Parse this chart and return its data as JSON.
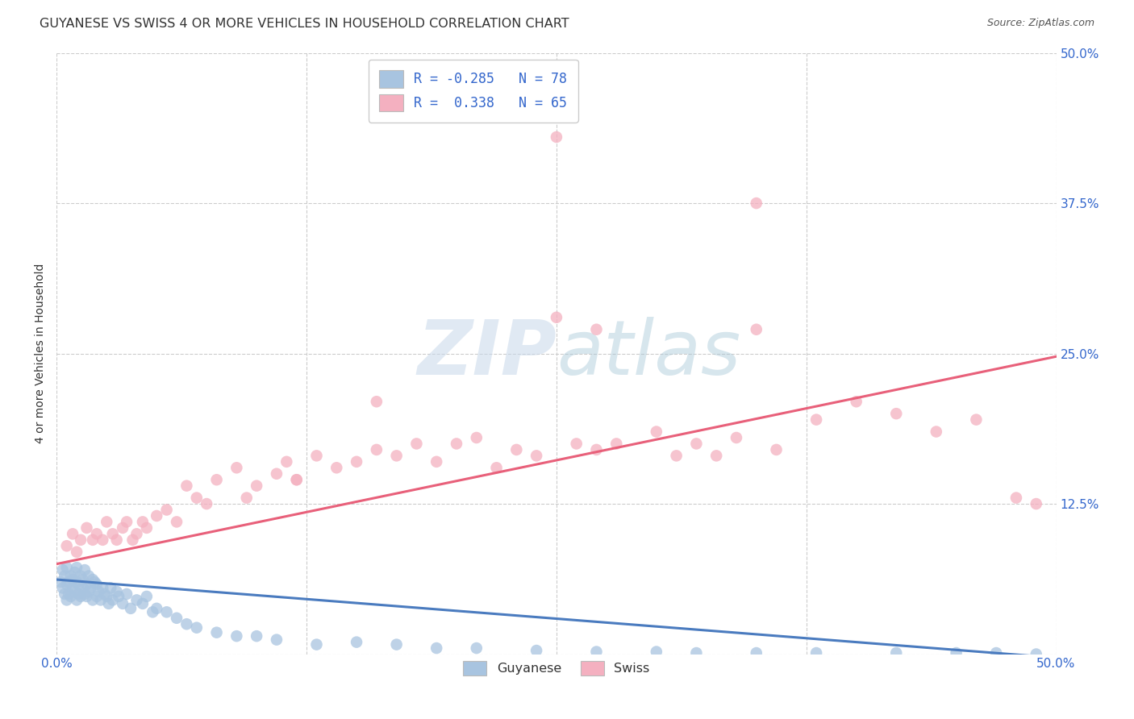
{
  "title": "GUYANESE VS SWISS 4 OR MORE VEHICLES IN HOUSEHOLD CORRELATION CHART",
  "source": "Source: ZipAtlas.com",
  "ylabel": "4 or more Vehicles in Household",
  "xlim": [
    0.0,
    0.5
  ],
  "ylim": [
    0.0,
    0.5
  ],
  "xtick_vals": [
    0.0,
    0.125,
    0.25,
    0.375,
    0.5
  ],
  "xticklabels": [
    "0.0%",
    "",
    "",
    "",
    "50.0%"
  ],
  "ytick_vals": [
    0.0,
    0.125,
    0.25,
    0.375,
    0.5
  ],
  "yticklabels_right": [
    "",
    "12.5%",
    "25.0%",
    "37.5%",
    "50.0%"
  ],
  "guyanese_R": -0.285,
  "guyanese_N": 78,
  "swiss_R": 0.338,
  "swiss_N": 65,
  "guyanese_color": "#a8c4e0",
  "swiss_color": "#f4b0c0",
  "guyanese_line_color": "#4a7bbf",
  "swiss_line_color": "#e8607a",
  "legend_color": "#3366cc",
  "title_fontsize": 11.5,
  "label_fontsize": 10,
  "tick_fontsize": 11,
  "guy_line_intercept": 0.062,
  "guy_line_slope": -0.13,
  "swiss_line_intercept": 0.075,
  "swiss_line_slope": 0.345,
  "guyanese_x": [
    0.002,
    0.003,
    0.003,
    0.004,
    0.004,
    0.005,
    0.005,
    0.005,
    0.006,
    0.006,
    0.007,
    0.007,
    0.008,
    0.008,
    0.009,
    0.009,
    0.01,
    0.01,
    0.01,
    0.011,
    0.011,
    0.012,
    0.012,
    0.013,
    0.013,
    0.014,
    0.014,
    0.015,
    0.015,
    0.016,
    0.016,
    0.017,
    0.018,
    0.018,
    0.019,
    0.02,
    0.02,
    0.021,
    0.022,
    0.023,
    0.024,
    0.025,
    0.026,
    0.027,
    0.028,
    0.03,
    0.031,
    0.033,
    0.035,
    0.037,
    0.04,
    0.043,
    0.045,
    0.048,
    0.05,
    0.055,
    0.06,
    0.065,
    0.07,
    0.08,
    0.09,
    0.1,
    0.11,
    0.13,
    0.15,
    0.17,
    0.19,
    0.21,
    0.24,
    0.27,
    0.3,
    0.32,
    0.35,
    0.38,
    0.42,
    0.45,
    0.47,
    0.49
  ],
  "guyanese_y": [
    0.06,
    0.055,
    0.07,
    0.05,
    0.065,
    0.045,
    0.058,
    0.072,
    0.05,
    0.06,
    0.065,
    0.048,
    0.055,
    0.062,
    0.052,
    0.068,
    0.06,
    0.045,
    0.072,
    0.058,
    0.05,
    0.065,
    0.048,
    0.055,
    0.062,
    0.05,
    0.07,
    0.058,
    0.048,
    0.065,
    0.052,
    0.055,
    0.062,
    0.045,
    0.06,
    0.058,
    0.048,
    0.052,
    0.045,
    0.055,
    0.05,
    0.048,
    0.042,
    0.055,
    0.045,
    0.052,
    0.048,
    0.042,
    0.05,
    0.038,
    0.045,
    0.042,
    0.048,
    0.035,
    0.038,
    0.035,
    0.03,
    0.025,
    0.022,
    0.018,
    0.015,
    0.015,
    0.012,
    0.008,
    0.01,
    0.008,
    0.005,
    0.005,
    0.003,
    0.002,
    0.002,
    0.001,
    0.001,
    0.001,
    0.001,
    0.001,
    0.001,
    0.0
  ],
  "swiss_x": [
    0.005,
    0.008,
    0.01,
    0.012,
    0.015,
    0.018,
    0.02,
    0.023,
    0.025,
    0.028,
    0.03,
    0.033,
    0.035,
    0.038,
    0.04,
    0.043,
    0.045,
    0.05,
    0.055,
    0.06,
    0.065,
    0.07,
    0.075,
    0.08,
    0.09,
    0.095,
    0.1,
    0.11,
    0.115,
    0.12,
    0.13,
    0.14,
    0.15,
    0.16,
    0.17,
    0.18,
    0.19,
    0.2,
    0.21,
    0.22,
    0.23,
    0.24,
    0.25,
    0.26,
    0.27,
    0.28,
    0.3,
    0.31,
    0.32,
    0.33,
    0.34,
    0.35,
    0.36,
    0.38,
    0.4,
    0.42,
    0.44,
    0.46,
    0.48,
    0.49,
    0.35,
    0.25,
    0.27,
    0.16,
    0.12
  ],
  "swiss_y": [
    0.09,
    0.1,
    0.085,
    0.095,
    0.105,
    0.095,
    0.1,
    0.095,
    0.11,
    0.1,
    0.095,
    0.105,
    0.11,
    0.095,
    0.1,
    0.11,
    0.105,
    0.115,
    0.12,
    0.11,
    0.14,
    0.13,
    0.125,
    0.145,
    0.155,
    0.13,
    0.14,
    0.15,
    0.16,
    0.145,
    0.165,
    0.155,
    0.16,
    0.17,
    0.165,
    0.175,
    0.16,
    0.175,
    0.18,
    0.155,
    0.17,
    0.165,
    0.43,
    0.175,
    0.17,
    0.175,
    0.185,
    0.165,
    0.175,
    0.165,
    0.18,
    0.375,
    0.17,
    0.195,
    0.21,
    0.2,
    0.185,
    0.195,
    0.13,
    0.125,
    0.27,
    0.28,
    0.27,
    0.21,
    0.145
  ]
}
